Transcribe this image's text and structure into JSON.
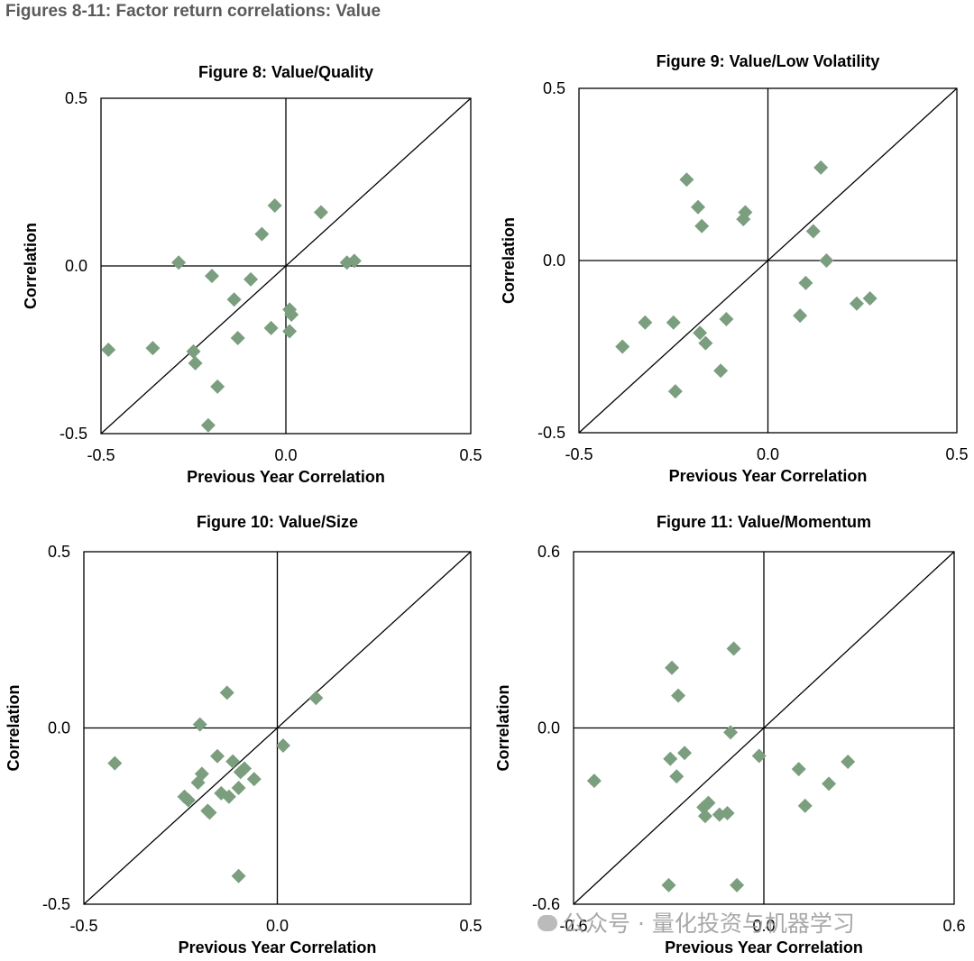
{
  "page_title": "Figures 8-11: Factor return correlations: Value",
  "watermark": "公众号 · 量化投资与机器学习",
  "colors": {
    "marker": "#7a9e7e",
    "axis": "#000000",
    "title": "#5a5a5a"
  },
  "chart_data": [
    {
      "type": "scatter",
      "title": "Figure 8: Value/Quality",
      "xlabel": "Previous Year Correlation",
      "ylabel": "Correlation",
      "xlim": [
        -0.5,
        0.5
      ],
      "ylim": [
        -0.5,
        0.5
      ],
      "x_ticks": [
        "-0.5",
        "0.0",
        "0.5"
      ],
      "y_ticks": [
        "0.5",
        "0.0",
        "-0.5"
      ],
      "points": [
        [
          -0.48,
          -0.25
        ],
        [
          -0.36,
          -0.245
        ],
        [
          -0.29,
          0.01
        ],
        [
          -0.25,
          -0.255
        ],
        [
          -0.245,
          -0.29
        ],
        [
          -0.2,
          -0.03
        ],
        [
          -0.185,
          -0.36
        ],
        [
          -0.21,
          -0.475
        ],
        [
          -0.14,
          -0.1
        ],
        [
          -0.13,
          -0.215
        ],
        [
          -0.095,
          -0.04
        ],
        [
          -0.065,
          0.095
        ],
        [
          -0.04,
          -0.185
        ],
        [
          -0.03,
          0.18
        ],
        [
          0.01,
          -0.13
        ],
        [
          0.015,
          -0.145
        ],
        [
          0.01,
          -0.195
        ],
        [
          0.095,
          0.16
        ],
        [
          0.165,
          0.01
        ],
        [
          0.185,
          0.015
        ]
      ]
    },
    {
      "type": "scatter",
      "title": "Figure 9: Value/Low Volatility",
      "xlabel": "Previous Year Correlation",
      "ylabel": "Correlation",
      "xlim": [
        -0.5,
        0.5
      ],
      "ylim": [
        -0.5,
        0.5
      ],
      "x_ticks": [
        "-0.5",
        "0.0",
        "0.5"
      ],
      "y_ticks": [
        "0.5",
        "0.0",
        "-0.5"
      ],
      "points": [
        [
          -0.385,
          -0.25
        ],
        [
          -0.325,
          -0.18
        ],
        [
          -0.25,
          -0.18
        ],
        [
          -0.245,
          -0.38
        ],
        [
          -0.215,
          0.235
        ],
        [
          -0.185,
          0.155
        ],
        [
          -0.18,
          -0.21
        ],
        [
          -0.175,
          0.1
        ],
        [
          -0.165,
          -0.24
        ],
        [
          -0.125,
          -0.32
        ],
        [
          -0.11,
          -0.17
        ],
        [
          -0.065,
          0.12
        ],
        [
          -0.06,
          0.14
        ],
        [
          0.085,
          -0.16
        ],
        [
          0.1,
          -0.065
        ],
        [
          0.12,
          0.085
        ],
        [
          0.14,
          0.27
        ],
        [
          0.155,
          0.0
        ],
        [
          0.235,
          -0.125
        ],
        [
          0.27,
          -0.11
        ]
      ]
    },
    {
      "type": "scatter",
      "title": "Figure 10: Value/Size",
      "xlabel": "Previous Year Correlation",
      "ylabel": "Correlation",
      "xlim": [
        -0.5,
        0.5
      ],
      "ylim": [
        -0.5,
        0.5
      ],
      "x_ticks": [
        "-0.5",
        "0.0",
        "0.5"
      ],
      "y_ticks": [
        "0.5",
        "0.0",
        "-0.5"
      ],
      "points": [
        [
          -0.42,
          -0.1
        ],
        [
          -0.24,
          -0.195
        ],
        [
          -0.23,
          -0.205
        ],
        [
          -0.205,
          -0.155
        ],
        [
          -0.2,
          0.01
        ],
        [
          -0.195,
          -0.13
        ],
        [
          -0.18,
          -0.235
        ],
        [
          -0.175,
          -0.24
        ],
        [
          -0.155,
          -0.08
        ],
        [
          -0.145,
          -0.185
        ],
        [
          -0.13,
          0.1
        ],
        [
          -0.125,
          -0.195
        ],
        [
          -0.115,
          -0.095
        ],
        [
          -0.1,
          -0.17
        ],
        [
          -0.095,
          -0.125
        ],
        [
          -0.1,
          -0.42
        ],
        [
          -0.085,
          -0.115
        ],
        [
          -0.06,
          -0.145
        ],
        [
          0.015,
          -0.05
        ],
        [
          0.1,
          0.085
        ]
      ]
    },
    {
      "type": "scatter",
      "title": "Figure 11: Value/Momentum",
      "xlabel": "Previous Year Correlation",
      "ylabel": "Correlation",
      "xlim": [
        -0.6,
        0.6
      ],
      "ylim": [
        -0.6,
        0.6
      ],
      "x_ticks": [
        "-0.6",
        "0.0",
        "0.6"
      ],
      "y_ticks": [
        "0.6",
        "0.0",
        "-0.6"
      ],
      "points": [
        [
          -0.535,
          -0.18
        ],
        [
          -0.3,
          -0.535
        ],
        [
          -0.295,
          -0.105
        ],
        [
          -0.29,
          0.205
        ],
        [
          -0.275,
          -0.165
        ],
        [
          -0.27,
          0.11
        ],
        [
          -0.25,
          -0.085
        ],
        [
          -0.19,
          -0.27
        ],
        [
          -0.185,
          -0.3
        ],
        [
          -0.175,
          -0.255
        ],
        [
          -0.14,
          -0.295
        ],
        [
          -0.115,
          -0.29
        ],
        [
          -0.105,
          -0.015
        ],
        [
          -0.095,
          0.27
        ],
        [
          -0.085,
          -0.535
        ],
        [
          -0.015,
          -0.095
        ],
        [
          0.11,
          -0.14
        ],
        [
          0.13,
          -0.265
        ],
        [
          0.205,
          -0.19
        ],
        [
          0.265,
          -0.115
        ]
      ]
    }
  ]
}
